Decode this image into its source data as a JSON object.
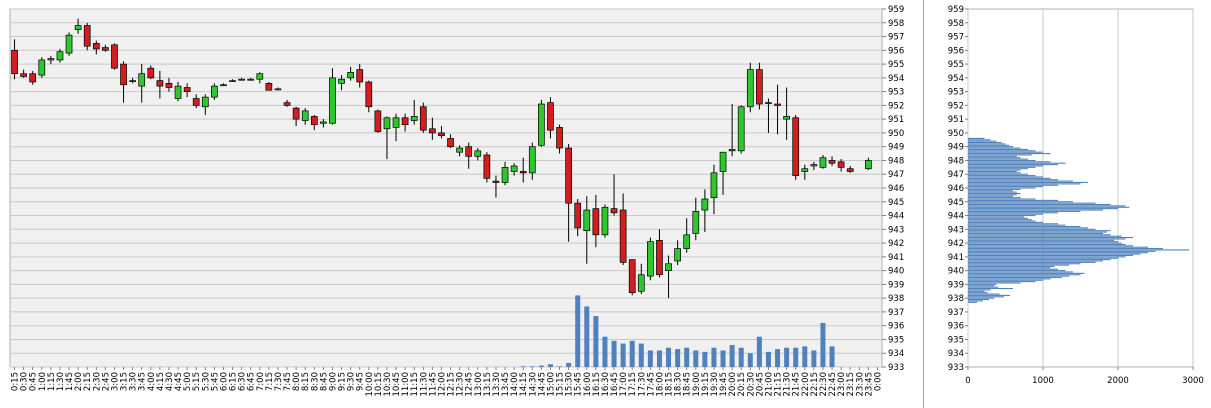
{
  "chart_data": [
    {
      "type": "candlestick",
      "ylim": [
        933,
        959
      ],
      "yticks": [
        959,
        958,
        957,
        956,
        955,
        954,
        953,
        952,
        951,
        950,
        949,
        948,
        947,
        946,
        945,
        944,
        943,
        942,
        941,
        940,
        939,
        938,
        937,
        936,
        935,
        934,
        933
      ],
      "grid": true,
      "x_tick_labels": [
        "0:15",
        "0:30",
        "0:45",
        "1:00",
        "1:15",
        "1:30",
        "1:45",
        "2:00",
        "2:15",
        "2:30",
        "2:45",
        "3:00",
        "3:15",
        "3:30",
        "3:45",
        "4:00",
        "4:15",
        "4:30",
        "4:45",
        "5:00",
        "5:15",
        "5:30",
        "5:45",
        "6:00",
        "6:15",
        "6:30",
        "6:45",
        "7:00",
        "7:15",
        "7:30",
        "7:45",
        "8:00",
        "8:15",
        "8:30",
        "8:45",
        "9:00",
        "9:15",
        "9:30",
        "9:45",
        "10:00",
        "10:15",
        "10:30",
        "10:45",
        "11:00",
        "11:15",
        "11:30",
        "11:45",
        "12:00",
        "12:15",
        "12:30",
        "12:45",
        "13:00",
        "13:15",
        "13:30",
        "13:45",
        "14:00",
        "14:15",
        "14:30",
        "14:45",
        "15:00",
        "15:15",
        "15:30",
        "15:45",
        "16:00",
        "16:15",
        "16:30",
        "16:45",
        "17:00",
        "17:15",
        "17:30",
        "17:45",
        "18:00",
        "18:15",
        "18:30",
        "18:45",
        "19:00",
        "19:15",
        "19:30",
        "19:45",
        "20:00",
        "20:15",
        "20:30",
        "20:45",
        "21:00",
        "21:15",
        "21:30",
        "21:45",
        "22:00",
        "22:15",
        "22:30",
        "22:45",
        "23:00",
        "23:15",
        "23:30",
        "23:45",
        "0:00"
      ],
      "candles": [
        {
          "o": 956.0,
          "h": 956.8,
          "l": 953.9,
          "c": 954.3
        },
        {
          "o": 954.3,
          "h": 954.6,
          "l": 954.0,
          "c": 954.1
        },
        {
          "o": 954.3,
          "h": 954.5,
          "l": 953.5,
          "c": 953.7
        },
        {
          "o": 954.2,
          "h": 955.5,
          "l": 954.0,
          "c": 955.3
        },
        {
          "o": 955.3,
          "h": 955.6,
          "l": 955.0,
          "c": 955.4
        },
        {
          "o": 955.3,
          "h": 956.1,
          "l": 955.1,
          "c": 955.9
        },
        {
          "o": 955.8,
          "h": 957.3,
          "l": 955.6,
          "c": 957.1
        },
        {
          "o": 957.5,
          "h": 958.3,
          "l": 957.2,
          "c": 957.8
        },
        {
          "o": 957.8,
          "h": 958.0,
          "l": 956.0,
          "c": 956.3
        },
        {
          "o": 956.5,
          "h": 956.7,
          "l": 955.7,
          "c": 956.1
        },
        {
          "o": 956.2,
          "h": 956.4,
          "l": 955.9,
          "c": 956.0
        },
        {
          "o": 956.4,
          "h": 956.5,
          "l": 954.6,
          "c": 954.7
        },
        {
          "o": 955.0,
          "h": 955.2,
          "l": 952.2,
          "c": 953.5
        },
        {
          "o": 953.8,
          "h": 954.0,
          "l": 953.6,
          "c": 953.8
        },
        {
          "o": 953.4,
          "h": 955.0,
          "l": 952.2,
          "c": 954.3
        },
        {
          "o": 954.7,
          "h": 954.9,
          "l": 953.9,
          "c": 954.0
        },
        {
          "o": 953.8,
          "h": 954.5,
          "l": 952.5,
          "c": 953.4
        },
        {
          "o": 953.6,
          "h": 954.0,
          "l": 953.0,
          "c": 953.3
        },
        {
          "o": 952.5,
          "h": 953.7,
          "l": 952.3,
          "c": 953.4
        },
        {
          "o": 953.3,
          "h": 953.6,
          "l": 952.6,
          "c": 953.0
        },
        {
          "o": 952.5,
          "h": 952.8,
          "l": 951.8,
          "c": 952.0
        },
        {
          "o": 951.9,
          "h": 952.8,
          "l": 951.3,
          "c": 952.6
        },
        {
          "o": 952.6,
          "h": 953.6,
          "l": 952.4,
          "c": 953.4
        },
        {
          "o": 953.5,
          "h": 953.6,
          "l": 953.4,
          "c": 953.5
        },
        {
          "o": 953.8,
          "h": 953.9,
          "l": 953.7,
          "c": 953.8
        },
        {
          "o": 953.9,
          "h": 954.0,
          "l": 953.8,
          "c": 953.9
        },
        {
          "o": 953.9,
          "h": 954.0,
          "l": 953.8,
          "c": 953.9
        },
        {
          "o": 953.9,
          "h": 954.4,
          "l": 953.6,
          "c": 954.3
        },
        {
          "o": 953.6,
          "h": 953.7,
          "l": 953.1,
          "c": 953.1
        },
        {
          "o": 953.2,
          "h": 953.3,
          "l": 953.1,
          "c": 953.2
        },
        {
          "o": 952.2,
          "h": 952.4,
          "l": 951.9,
          "c": 952.0
        },
        {
          "o": 951.8,
          "h": 951.9,
          "l": 950.5,
          "c": 951.0
        },
        {
          "o": 950.9,
          "h": 951.8,
          "l": 950.6,
          "c": 951.6
        },
        {
          "o": 951.2,
          "h": 951.3,
          "l": 950.2,
          "c": 950.6
        },
        {
          "o": 950.7,
          "h": 951.0,
          "l": 950.4,
          "c": 950.8
        },
        {
          "o": 950.7,
          "h": 954.7,
          "l": 950.6,
          "c": 954.0
        },
        {
          "o": 953.6,
          "h": 954.2,
          "l": 953.1,
          "c": 953.9
        },
        {
          "o": 954.0,
          "h": 954.8,
          "l": 953.8,
          "c": 954.4
        },
        {
          "o": 954.6,
          "h": 955.0,
          "l": 953.3,
          "c": 953.7
        },
        {
          "o": 953.7,
          "h": 953.8,
          "l": 951.5,
          "c": 951.9
        },
        {
          "o": 951.6,
          "h": 951.7,
          "l": 950.0,
          "c": 950.1
        },
        {
          "o": 950.3,
          "h": 951.2,
          "l": 948.1,
          "c": 951.1
        },
        {
          "o": 950.4,
          "h": 951.4,
          "l": 949.4,
          "c": 951.1
        },
        {
          "o": 951.1,
          "h": 951.4,
          "l": 950.1,
          "c": 950.6
        },
        {
          "o": 950.9,
          "h": 952.4,
          "l": 950.6,
          "c": 951.2
        },
        {
          "o": 951.9,
          "h": 952.2,
          "l": 950.0,
          "c": 950.2
        },
        {
          "o": 950.3,
          "h": 951.1,
          "l": 949.5,
          "c": 950.0
        },
        {
          "o": 950.0,
          "h": 950.5,
          "l": 949.6,
          "c": 949.8
        },
        {
          "o": 949.6,
          "h": 949.9,
          "l": 948.9,
          "c": 949.0
        },
        {
          "o": 948.6,
          "h": 949.1,
          "l": 948.3,
          "c": 948.9
        },
        {
          "o": 949.0,
          "h": 949.3,
          "l": 947.4,
          "c": 948.3
        },
        {
          "o": 948.3,
          "h": 948.9,
          "l": 948.0,
          "c": 948.7
        },
        {
          "o": 948.4,
          "h": 948.6,
          "l": 946.4,
          "c": 946.7
        },
        {
          "o": 946.5,
          "h": 946.9,
          "l": 945.3,
          "c": 946.4
        },
        {
          "o": 946.4,
          "h": 947.9,
          "l": 946.2,
          "c": 947.5
        },
        {
          "o": 947.2,
          "h": 947.8,
          "l": 946.9,
          "c": 947.6
        },
        {
          "o": 947.2,
          "h": 948.2,
          "l": 946.4,
          "c": 947.1
        },
        {
          "o": 947.1,
          "h": 949.3,
          "l": 946.6,
          "c": 949.0
        },
        {
          "o": 949.1,
          "h": 952.4,
          "l": 949.0,
          "c": 952.1
        },
        {
          "o": 952.2,
          "h": 952.6,
          "l": 949.6,
          "c": 950.2
        },
        {
          "o": 950.4,
          "h": 950.6,
          "l": 948.5,
          "c": 948.9
        },
        {
          "o": 948.9,
          "h": 949.2,
          "l": 942.1,
          "c": 944.9
        },
        {
          "o": 944.9,
          "h": 945.2,
          "l": 942.5,
          "c": 943.1
        },
        {
          "o": 942.9,
          "h": 945.4,
          "l": 940.5,
          "c": 944.4
        },
        {
          "o": 944.5,
          "h": 945.5,
          "l": 941.7,
          "c": 942.6
        },
        {
          "o": 942.6,
          "h": 944.8,
          "l": 942.4,
          "c": 944.6
        },
        {
          "o": 944.5,
          "h": 947.0,
          "l": 944.0,
          "c": 944.2
        },
        {
          "o": 944.4,
          "h": 945.6,
          "l": 940.4,
          "c": 940.6
        },
        {
          "o": 940.8,
          "h": 940.8,
          "l": 938.2,
          "c": 938.4
        },
        {
          "o": 938.5,
          "h": 940.5,
          "l": 938.3,
          "c": 939.7
        },
        {
          "o": 939.6,
          "h": 942.4,
          "l": 939.3,
          "c": 942.1
        },
        {
          "o": 942.2,
          "h": 943.0,
          "l": 939.5,
          "c": 939.7
        },
        {
          "o": 940.0,
          "h": 941.1,
          "l": 938.0,
          "c": 940.5
        },
        {
          "o": 940.7,
          "h": 942.2,
          "l": 940.4,
          "c": 941.6
        },
        {
          "o": 941.6,
          "h": 943.8,
          "l": 941.3,
          "c": 942.6
        },
        {
          "o": 942.7,
          "h": 945.3,
          "l": 942.2,
          "c": 944.3
        },
        {
          "o": 944.4,
          "h": 945.9,
          "l": 942.8,
          "c": 945.2
        },
        {
          "o": 945.3,
          "h": 947.7,
          "l": 944.1,
          "c": 947.1
        },
        {
          "o": 947.2,
          "h": 948.6,
          "l": 945.5,
          "c": 948.6
        },
        {
          "o": 948.7,
          "h": 952.1,
          "l": 948.3,
          "c": 948.8
        },
        {
          "o": 948.7,
          "h": 952.0,
          "l": 948.5,
          "c": 951.9
        },
        {
          "o": 951.9,
          "h": 955.1,
          "l": 951.5,
          "c": 954.6
        },
        {
          "o": 954.6,
          "h": 955.1,
          "l": 951.7,
          "c": 952.1
        },
        {
          "o": 952.2,
          "h": 952.5,
          "l": 950.0,
          "c": 952.2
        },
        {
          "o": 952.1,
          "h": 953.5,
          "l": 949.9,
          "c": 952.0
        },
        {
          "o": 951.0,
          "h": 953.3,
          "l": 949.5,
          "c": 951.2
        },
        {
          "o": 951.1,
          "h": 951.3,
          "l": 946.6,
          "c": 946.9
        },
        {
          "o": 947.2,
          "h": 947.7,
          "l": 946.6,
          "c": 947.4
        },
        {
          "o": 947.6,
          "h": 947.9,
          "l": 947.3,
          "c": 947.7
        },
        {
          "o": 947.5,
          "h": 948.4,
          "l": 947.4,
          "c": 948.2
        },
        {
          "o": 948.0,
          "h": 948.3,
          "l": 947.6,
          "c": 947.8
        },
        {
          "o": 947.9,
          "h": 948.1,
          "l": 947.2,
          "c": 947.5
        },
        {
          "o": 947.4,
          "h": 947.6,
          "l": 947.1,
          "c": 947.2
        },
        null,
        {
          "o": 947.4,
          "h": 948.2,
          "l": 947.3,
          "c": 948.0
        }
      ],
      "volume": [
        0,
        0,
        0,
        0,
        0,
        0,
        0,
        0,
        0,
        0,
        0,
        0,
        0,
        0,
        0,
        0,
        0,
        0,
        0,
        0,
        0,
        0,
        0,
        0,
        0,
        0,
        0,
        0,
        0,
        0,
        0,
        0,
        0,
        0,
        0,
        0,
        0,
        0,
        0,
        0,
        0,
        0,
        0,
        0,
        0,
        0,
        0,
        0,
        0,
        0,
        0,
        0,
        0,
        0,
        0,
        0,
        0.05,
        0.05,
        0.1,
        0.2,
        0.05,
        0.3,
        5.2,
        4.4,
        3.7,
        2.2,
        1.9,
        1.7,
        1.9,
        1.7,
        1.2,
        1.2,
        1.4,
        1.3,
        1.4,
        1.2,
        1.1,
        1.4,
        1.2,
        1.6,
        1.4,
        1.0,
        2.2,
        1.1,
        1.3,
        1.4,
        1.4,
        1.5,
        1.2,
        3.2,
        1.5,
        0,
        0,
        0,
        0,
        0
      ]
    },
    {
      "type": "bar",
      "orientation": "horizontal",
      "title": "",
      "xlim": [
        0,
        3000
      ],
      "xticks": [
        0,
        1000,
        2000,
        3000
      ],
      "ylim": [
        933,
        959
      ],
      "yticks": [
        959,
        958,
        957,
        956,
        955,
        954,
        953,
        952,
        951,
        950,
        949,
        948,
        947,
        946,
        945,
        944,
        943,
        942,
        941,
        940,
        939,
        938,
        937,
        936,
        935,
        934,
        933
      ],
      "price_step": 0.1,
      "price_levels_from": 937.7,
      "values": [
        120,
        200,
        280,
        350,
        480,
        560,
        420,
        260,
        220,
        300,
        600,
        400,
        350,
        380,
        700,
        900,
        1000,
        1100,
        1250,
        1350,
        1500,
        1550,
        1400,
        1300,
        1200,
        1100,
        1150,
        1350,
        1500,
        1700,
        1800,
        1900,
        2000,
        2100,
        2200,
        2300,
        2400,
        2500,
        2950,
        2600,
        2400,
        2200,
        2100,
        2050,
        2000,
        1950,
        2100,
        2200,
        2050,
        1900,
        1800,
        1850,
        1900,
        1700,
        1600,
        1500,
        1300,
        1200,
        1000,
        900,
        850,
        800,
        750,
        900,
        1000,
        1200,
        1500,
        1800,
        2000,
        2150,
        2100,
        1900,
        1700,
        1400,
        1200,
        900,
        700,
        600,
        650,
        700,
        650,
        600,
        700,
        900,
        1000,
        1200,
        1500,
        1600,
        1400,
        1200,
        1100,
        1000,
        900,
        800,
        700,
        650,
        700,
        800,
        900,
        1000,
        1200,
        1300,
        1100,
        900,
        800,
        700,
        650,
        850,
        1100,
        1000,
        900,
        800,
        700,
        600,
        550,
        500,
        450,
        380,
        300,
        220
      ]
    }
  ]
}
